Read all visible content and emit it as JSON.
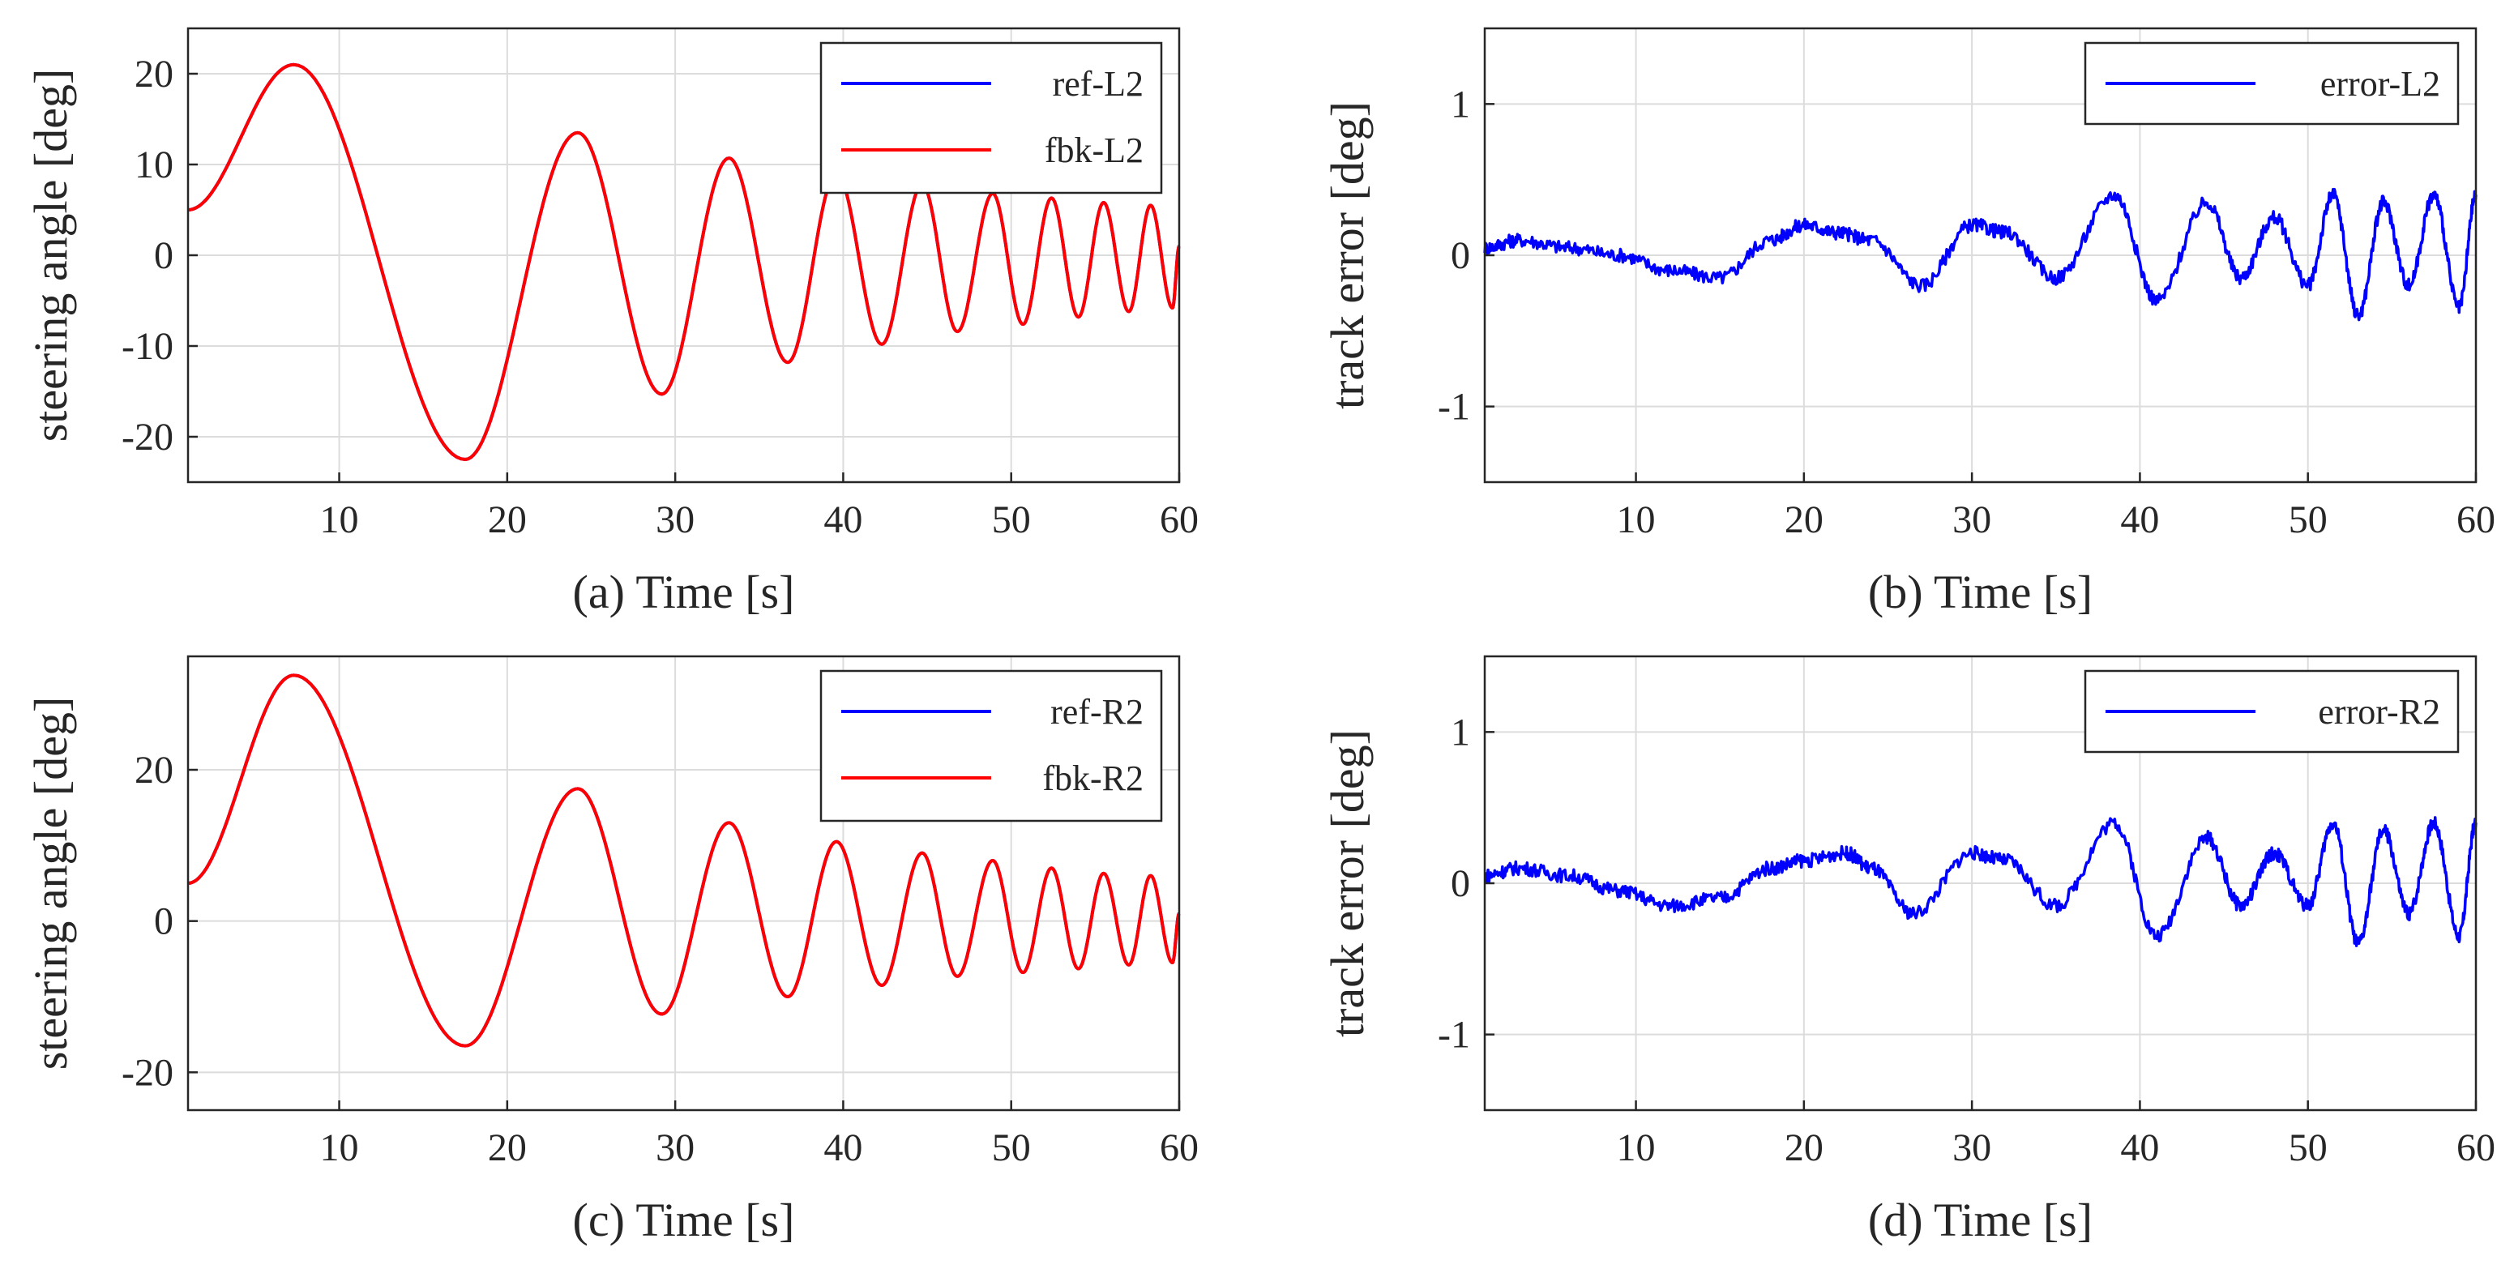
{
  "chart_data": [
    {
      "type": "line",
      "panel": "a",
      "xlabel": "(a) Time [s]",
      "ylabel": "steering angle [deg]",
      "xlim": [
        1,
        60
      ],
      "ylim": [
        -25,
        25
      ],
      "xticks": [
        10,
        20,
        30,
        40,
        50,
        60
      ],
      "yticks": [
        -20,
        -10,
        0,
        10,
        20
      ],
      "legend_position": "top-right",
      "series": [
        {
          "name": "ref-L2",
          "color": "#0000ff",
          "x": [
            1,
            7.3,
            17.5,
            24.2,
            29.2,
            33.2,
            36.7,
            39.6,
            42.3,
            44.7,
            46.8,
            48.9,
            50.7,
            52.4,
            54.0,
            55.5,
            57.0,
            58.3,
            59.6,
            60
          ],
          "y": [
            5,
            21,
            -22.5,
            13.5,
            -15.3,
            10.7,
            -11.8,
            9,
            -9.8,
            7.8,
            -8.4,
            6.8,
            -7.6,
            6.3,
            -6.8,
            5.8,
            -6.2,
            5.5,
            -5.8,
            1
          ]
        },
        {
          "name": "fbk-L2",
          "color": "#ff0000",
          "x": [
            1,
            7.3,
            17.5,
            24.2,
            29.2,
            33.2,
            36.7,
            39.6,
            42.3,
            44.7,
            46.8,
            48.9,
            50.7,
            52.4,
            54.0,
            55.5,
            57.0,
            58.3,
            59.6,
            60
          ],
          "y": [
            5,
            21,
            -22.5,
            13.5,
            -15.3,
            10.7,
            -11.8,
            9,
            -9.8,
            7.8,
            -8.4,
            6.8,
            -7.6,
            6.3,
            -6.8,
            5.8,
            -6.2,
            5.5,
            -5.8,
            1
          ]
        }
      ]
    },
    {
      "type": "line",
      "panel": "b",
      "xlabel": "(b) Time [s]",
      "ylabel": "track error [deg]",
      "xlim": [
        1,
        60
      ],
      "ylim": [
        -1.5,
        1.5
      ],
      "xticks": [
        10,
        20,
        30,
        40,
        50,
        60
      ],
      "yticks": [
        -1,
        0,
        1
      ],
      "legend_position": "top-right",
      "series": [
        {
          "name": "error-L2",
          "color": "#0000ff",
          "x": [
            1,
            3,
            6,
            9,
            12,
            15,
            18,
            20,
            22,
            24,
            27,
            30,
            32,
            35,
            38.5,
            41,
            44,
            46,
            48,
            50,
            51.5,
            53,
            54.5,
            56,
            57.5,
            59,
            60
          ],
          "y": [
            0.05,
            0.1,
            0.05,
            0.0,
            -0.1,
            -0.15,
            0.1,
            0.2,
            0.15,
            0.1,
            -0.2,
            0.2,
            0.15,
            -0.15,
            0.4,
            -0.3,
            0.35,
            -0.15,
            0.25,
            -0.2,
            0.4,
            -0.4,
            0.35,
            -0.2,
            0.4,
            -0.35,
            0.4
          ]
        }
      ]
    },
    {
      "type": "line",
      "panel": "c",
      "xlabel": "(c) Time [s]",
      "ylabel": "steering angle [deg]",
      "xlim": [
        1,
        60
      ],
      "ylim": [
        -25,
        35
      ],
      "xticks": [
        10,
        20,
        30,
        40,
        50,
        60
      ],
      "yticks": [
        -20,
        0,
        20
      ],
      "legend_position": "top-right",
      "series": [
        {
          "name": "ref-R2",
          "color": "#0000ff",
          "x": [
            1,
            7.3,
            17.5,
            24.2,
            29.2,
            33.2,
            36.7,
            39.6,
            42.3,
            44.7,
            46.8,
            48.9,
            50.7,
            52.4,
            54.0,
            55.5,
            57.0,
            58.3,
            59.6,
            60
          ],
          "y": [
            5,
            32.5,
            -16.5,
            17.5,
            -12.3,
            13,
            -10,
            10.5,
            -8.5,
            9,
            -7.3,
            8,
            -6.8,
            7,
            -6.3,
            6.3,
            -5.8,
            6,
            -5.5,
            1
          ]
        },
        {
          "name": "fbk-R2",
          "color": "#ff0000",
          "x": [
            1,
            7.3,
            17.5,
            24.2,
            29.2,
            33.2,
            36.7,
            39.6,
            42.3,
            44.7,
            46.8,
            48.9,
            50.7,
            52.4,
            54.0,
            55.5,
            57.0,
            58.3,
            59.6,
            60
          ],
          "y": [
            5,
            32.5,
            -16.5,
            17.5,
            -12.3,
            13,
            -10,
            10.5,
            -8.5,
            9,
            -7.3,
            8,
            -6.8,
            7,
            -6.3,
            6.3,
            -5.8,
            6,
            -5.5,
            1
          ]
        }
      ]
    },
    {
      "type": "line",
      "panel": "d",
      "xlabel": "(d) Time [s]",
      "ylabel": "track error [deg]",
      "xlim": [
        1,
        60
      ],
      "ylim": [
        -1.5,
        1.5
      ],
      "xticks": [
        10,
        20,
        30,
        40,
        50,
        60
      ],
      "yticks": [
        -1,
        0,
        1
      ],
      "legend_position": "top-right",
      "series": [
        {
          "name": "error-R2",
          "color": "#0000ff",
          "x": [
            1,
            3,
            6,
            9,
            12,
            15,
            18,
            20,
            22.5,
            24,
            26.5,
            30,
            32,
            35,
            38.5,
            41,
            44,
            46,
            48,
            50,
            51.5,
            53,
            54.5,
            56,
            57.5,
            59,
            60
          ],
          "y": [
            0.05,
            0.1,
            0.05,
            -0.05,
            -0.15,
            -0.1,
            0.1,
            0.15,
            0.2,
            0.1,
            -0.2,
            0.2,
            0.15,
            -0.15,
            0.4,
            -0.35,
            0.3,
            -0.15,
            0.2,
            -0.15,
            0.4,
            -0.4,
            0.35,
            -0.2,
            0.4,
            -0.35,
            0.4
          ]
        }
      ]
    }
  ]
}
